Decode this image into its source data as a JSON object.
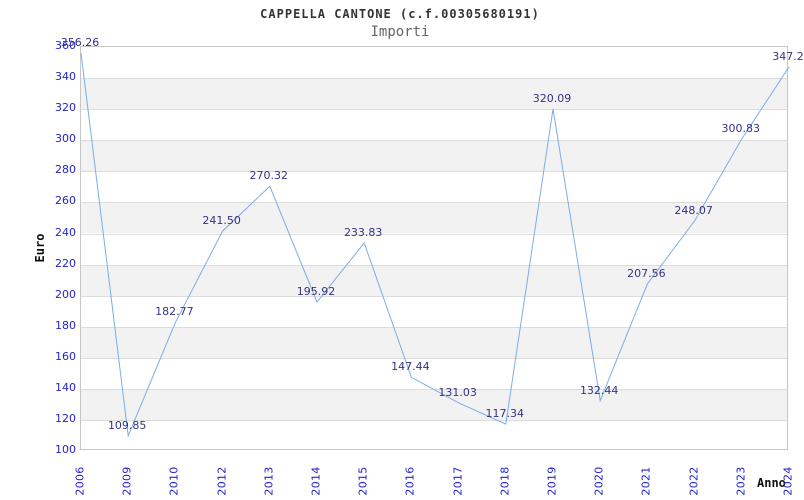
{
  "page": {
    "background": "#ffffff"
  },
  "chart_data": {
    "type": "line",
    "title": "CAPPELLA CANTONE (c.f.00305680191)",
    "subtitle": "Importi",
    "xlabel": "Anno",
    "ylabel": "Euro",
    "categories": [
      "2006",
      "2009",
      "2010",
      "2012",
      "2013",
      "2014",
      "2015",
      "2016",
      "2017",
      "2018",
      "2019",
      "2020",
      "2021",
      "2022",
      "2023",
      "2024"
    ],
    "values": [
      356.26,
      109.85,
      182.77,
      241.5,
      270.32,
      195.92,
      233.83,
      147.44,
      131.03,
      117.34,
      320.09,
      132.44,
      207.56,
      248.07,
      300.83,
      347.2
    ],
    "point_labels": [
      "356.26",
      "109.85",
      "182.77",
      "241.50",
      "270.32",
      "195.92",
      "233.83",
      "147.44",
      "131.03",
      "117.34",
      "320.09",
      "132.44",
      "207.56",
      "248.07",
      "300.83",
      "347.2"
    ],
    "ylim": [
      100,
      360
    ],
    "ytick_step": 20,
    "yticks": [
      100,
      120,
      140,
      160,
      180,
      200,
      220,
      240,
      260,
      280,
      300,
      320,
      340,
      360
    ],
    "xtick_rotation": -90,
    "grid": true,
    "legend": false,
    "band_fill_alternating": true,
    "colors": {
      "line": "#7aaee8",
      "axis_tick_label": "#2323cc",
      "point_label": "#333385",
      "band": "#f2f2f2",
      "gridline": "#dcdcdc",
      "plot_border": "#c6c6c6",
      "title": "#333333",
      "subtitle": "#666666",
      "axis_title": "#111111"
    }
  }
}
